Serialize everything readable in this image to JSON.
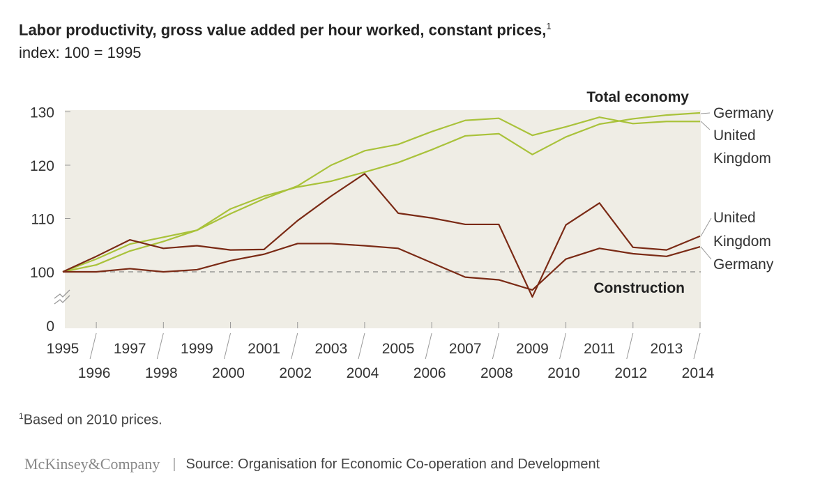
{
  "title": "Labor productivity, gross value added per hour worked, constant prices,",
  "title_footnote_mark": "1",
  "subtitle": "index: 100 = 1995",
  "footnote_mark": "1",
  "footnote": "Based on 2010 prices.",
  "logo": "McKinsey&Company",
  "source": "Source: Organisation for Economic Co-operation and Development",
  "colors": {
    "total_economy": "#a9c23a",
    "construction": "#7a2a15",
    "plot_bg": "#efede5",
    "baseline": "#888888"
  },
  "chart_data": {
    "type": "line",
    "x": [
      1995,
      1996,
      1997,
      1998,
      1999,
      2000,
      2001,
      2002,
      2003,
      2004,
      2005,
      2006,
      2007,
      2008,
      2009,
      2010,
      2011,
      2012,
      2013,
      2014
    ],
    "x_tick_labels": [
      "1995",
      "1996",
      "1997",
      "1998",
      "1999",
      "2000",
      "2001",
      "2002",
      "2003",
      "2004",
      "2005",
      "2006",
      "2007",
      "2008",
      "2009",
      "2010",
      "2011",
      "2012",
      "2013",
      "2014"
    ],
    "y_ticks": [
      0,
      100,
      110,
      120,
      130
    ],
    "y_tick_labels": [
      "0",
      "100",
      "110",
      "120",
      "130"
    ],
    "ylim": [
      0,
      130
    ],
    "y_axis_break": [
      0,
      100
    ],
    "reference_line": 100,
    "grid": false,
    "groups": [
      {
        "name": "Total economy",
        "series": [
          {
            "name": "Germany",
            "values": [
              100,
              102.4,
              105.2,
              106.5,
              107.8,
              111.8,
              114.2,
              115.9,
              117.0,
              118.7,
              120.5,
              122.9,
              125.5,
              125.9,
              122.0,
              125.3,
              127.7,
              128.7,
              129.4,
              129.8
            ]
          },
          {
            "name": "United Kingdom",
            "values": [
              100,
              101.3,
              103.9,
              105.7,
              107.8,
              110.9,
              113.7,
              116.1,
              120.0,
              122.7,
              123.9,
              126.3,
              128.4,
              128.8,
              125.6,
              127.2,
              129.0,
              127.8,
              128.2,
              128.2
            ]
          }
        ]
      },
      {
        "name": "Construction",
        "series": [
          {
            "name": "United Kingdom",
            "values": [
              100,
              102.9,
              106.0,
              104.4,
              104.9,
              104.1,
              104.2,
              109.6,
              114.2,
              118.4,
              111.0,
              110.1,
              108.9,
              108.9,
              95.3,
              108.8,
              112.9,
              104.6,
              104.1,
              106.7
            ]
          },
          {
            "name": "Germany",
            "values": [
              100,
              100,
              100.6,
              100,
              100.4,
              102.1,
              103.3,
              105.3,
              105.3,
              104.9,
              104.4,
              101.7,
              99.0,
              98.5,
              96.6,
              102.4,
              104.4,
              103.4,
              102.9,
              104.7
            ]
          }
        ]
      }
    ],
    "end_labels": {
      "total_germany": "Germany",
      "total_uk_line1": "United",
      "total_uk_line2": "Kingdom",
      "cons_uk_line1": "United",
      "cons_uk_line2": "Kingdom",
      "cons_germany": "Germany"
    }
  }
}
